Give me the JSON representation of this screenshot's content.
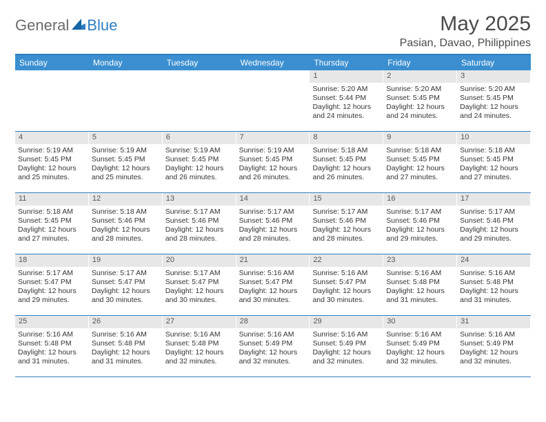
{
  "logo": {
    "part1": "General",
    "part2": "Blue"
  },
  "title": "May 2025",
  "location": "Pasian, Davao, Philippines",
  "weekdays": [
    "Sunday",
    "Monday",
    "Tuesday",
    "Wednesday",
    "Thursday",
    "Friday",
    "Saturday"
  ],
  "colors": {
    "brand_blue": "#3b8fd0",
    "rule_blue": "#2f7ec1",
    "daynum_bg": "#e7e7e7",
    "text": "#333333",
    "logo_grey": "#6b6b6b"
  },
  "weeks": [
    [
      {
        "n": "",
        "sr": "",
        "ss": "",
        "dl": ""
      },
      {
        "n": "",
        "sr": "",
        "ss": "",
        "dl": ""
      },
      {
        "n": "",
        "sr": "",
        "ss": "",
        "dl": ""
      },
      {
        "n": "",
        "sr": "",
        "ss": "",
        "dl": ""
      },
      {
        "n": "1",
        "sr": "Sunrise: 5:20 AM",
        "ss": "Sunset: 5:44 PM",
        "dl": "Daylight: 12 hours and 24 minutes."
      },
      {
        "n": "2",
        "sr": "Sunrise: 5:20 AM",
        "ss": "Sunset: 5:45 PM",
        "dl": "Daylight: 12 hours and 24 minutes."
      },
      {
        "n": "3",
        "sr": "Sunrise: 5:20 AM",
        "ss": "Sunset: 5:45 PM",
        "dl": "Daylight: 12 hours and 24 minutes."
      }
    ],
    [
      {
        "n": "4",
        "sr": "Sunrise: 5:19 AM",
        "ss": "Sunset: 5:45 PM",
        "dl": "Daylight: 12 hours and 25 minutes."
      },
      {
        "n": "5",
        "sr": "Sunrise: 5:19 AM",
        "ss": "Sunset: 5:45 PM",
        "dl": "Daylight: 12 hours and 25 minutes."
      },
      {
        "n": "6",
        "sr": "Sunrise: 5:19 AM",
        "ss": "Sunset: 5:45 PM",
        "dl": "Daylight: 12 hours and 26 minutes."
      },
      {
        "n": "7",
        "sr": "Sunrise: 5:19 AM",
        "ss": "Sunset: 5:45 PM",
        "dl": "Daylight: 12 hours and 26 minutes."
      },
      {
        "n": "8",
        "sr": "Sunrise: 5:18 AM",
        "ss": "Sunset: 5:45 PM",
        "dl": "Daylight: 12 hours and 26 minutes."
      },
      {
        "n": "9",
        "sr": "Sunrise: 5:18 AM",
        "ss": "Sunset: 5:45 PM",
        "dl": "Daylight: 12 hours and 27 minutes."
      },
      {
        "n": "10",
        "sr": "Sunrise: 5:18 AM",
        "ss": "Sunset: 5:45 PM",
        "dl": "Daylight: 12 hours and 27 minutes."
      }
    ],
    [
      {
        "n": "11",
        "sr": "Sunrise: 5:18 AM",
        "ss": "Sunset: 5:45 PM",
        "dl": "Daylight: 12 hours and 27 minutes."
      },
      {
        "n": "12",
        "sr": "Sunrise: 5:18 AM",
        "ss": "Sunset: 5:46 PM",
        "dl": "Daylight: 12 hours and 28 minutes."
      },
      {
        "n": "13",
        "sr": "Sunrise: 5:17 AM",
        "ss": "Sunset: 5:46 PM",
        "dl": "Daylight: 12 hours and 28 minutes."
      },
      {
        "n": "14",
        "sr": "Sunrise: 5:17 AM",
        "ss": "Sunset: 5:46 PM",
        "dl": "Daylight: 12 hours and 28 minutes."
      },
      {
        "n": "15",
        "sr": "Sunrise: 5:17 AM",
        "ss": "Sunset: 5:46 PM",
        "dl": "Daylight: 12 hours and 28 minutes."
      },
      {
        "n": "16",
        "sr": "Sunrise: 5:17 AM",
        "ss": "Sunset: 5:46 PM",
        "dl": "Daylight: 12 hours and 29 minutes."
      },
      {
        "n": "17",
        "sr": "Sunrise: 5:17 AM",
        "ss": "Sunset: 5:46 PM",
        "dl": "Daylight: 12 hours and 29 minutes."
      }
    ],
    [
      {
        "n": "18",
        "sr": "Sunrise: 5:17 AM",
        "ss": "Sunset: 5:47 PM",
        "dl": "Daylight: 12 hours and 29 minutes."
      },
      {
        "n": "19",
        "sr": "Sunrise: 5:17 AM",
        "ss": "Sunset: 5:47 PM",
        "dl": "Daylight: 12 hours and 30 minutes."
      },
      {
        "n": "20",
        "sr": "Sunrise: 5:17 AM",
        "ss": "Sunset: 5:47 PM",
        "dl": "Daylight: 12 hours and 30 minutes."
      },
      {
        "n": "21",
        "sr": "Sunrise: 5:16 AM",
        "ss": "Sunset: 5:47 PM",
        "dl": "Daylight: 12 hours and 30 minutes."
      },
      {
        "n": "22",
        "sr": "Sunrise: 5:16 AM",
        "ss": "Sunset: 5:47 PM",
        "dl": "Daylight: 12 hours and 30 minutes."
      },
      {
        "n": "23",
        "sr": "Sunrise: 5:16 AM",
        "ss": "Sunset: 5:48 PM",
        "dl": "Daylight: 12 hours and 31 minutes."
      },
      {
        "n": "24",
        "sr": "Sunrise: 5:16 AM",
        "ss": "Sunset: 5:48 PM",
        "dl": "Daylight: 12 hours and 31 minutes."
      }
    ],
    [
      {
        "n": "25",
        "sr": "Sunrise: 5:16 AM",
        "ss": "Sunset: 5:48 PM",
        "dl": "Daylight: 12 hours and 31 minutes."
      },
      {
        "n": "26",
        "sr": "Sunrise: 5:16 AM",
        "ss": "Sunset: 5:48 PM",
        "dl": "Daylight: 12 hours and 31 minutes."
      },
      {
        "n": "27",
        "sr": "Sunrise: 5:16 AM",
        "ss": "Sunset: 5:48 PM",
        "dl": "Daylight: 12 hours and 32 minutes."
      },
      {
        "n": "28",
        "sr": "Sunrise: 5:16 AM",
        "ss": "Sunset: 5:49 PM",
        "dl": "Daylight: 12 hours and 32 minutes."
      },
      {
        "n": "29",
        "sr": "Sunrise: 5:16 AM",
        "ss": "Sunset: 5:49 PM",
        "dl": "Daylight: 12 hours and 32 minutes."
      },
      {
        "n": "30",
        "sr": "Sunrise: 5:16 AM",
        "ss": "Sunset: 5:49 PM",
        "dl": "Daylight: 12 hours and 32 minutes."
      },
      {
        "n": "31",
        "sr": "Sunrise: 5:16 AM",
        "ss": "Sunset: 5:49 PM",
        "dl": "Daylight: 12 hours and 32 minutes."
      }
    ]
  ]
}
